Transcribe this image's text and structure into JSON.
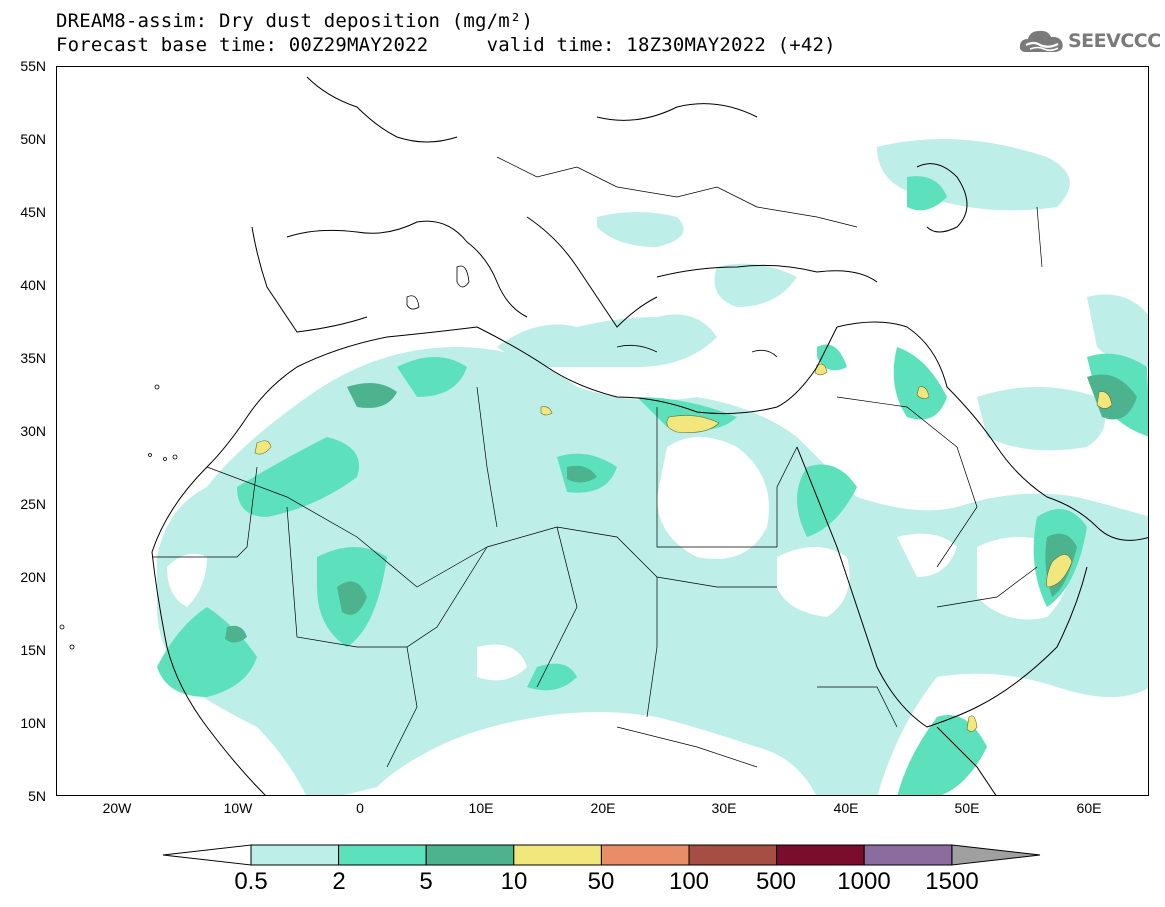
{
  "title": {
    "line1": "DREAM8-assim: Dry dust deposition (mg/m²)",
    "line2": "Forecast base time: 00Z29MAY2022     valid time: 18Z30MAY2022 (+42)"
  },
  "logo": {
    "icon": "cloud-icon",
    "text": "SEEVCCC"
  },
  "map": {
    "lon_range": [
      -25,
      65
    ],
    "lat_range": [
      5,
      55
    ],
    "lat_ticks": [
      "55N",
      "50N",
      "45N",
      "40N",
      "35N",
      "30N",
      "25N",
      "20N",
      "15N",
      "10N",
      "5N"
    ],
    "lon_ticks": [
      "20W",
      "10W",
      "0",
      "10E",
      "20E",
      "30E",
      "40E",
      "50E",
      "60E"
    ]
  },
  "legend": {
    "labels": [
      "0.5",
      "2",
      "5",
      "10",
      "50",
      "100",
      "500",
      "1000",
      "1500"
    ],
    "colors": [
      "#bdeee8",
      "#5de1bc",
      "#4db38f",
      "#f1e77c",
      "#e88d67",
      "#a64e44",
      "#7a0d2c",
      "#8c6b9e"
    ],
    "under_color": "#ffffff",
    "over_color": "#a0a0a0"
  }
}
